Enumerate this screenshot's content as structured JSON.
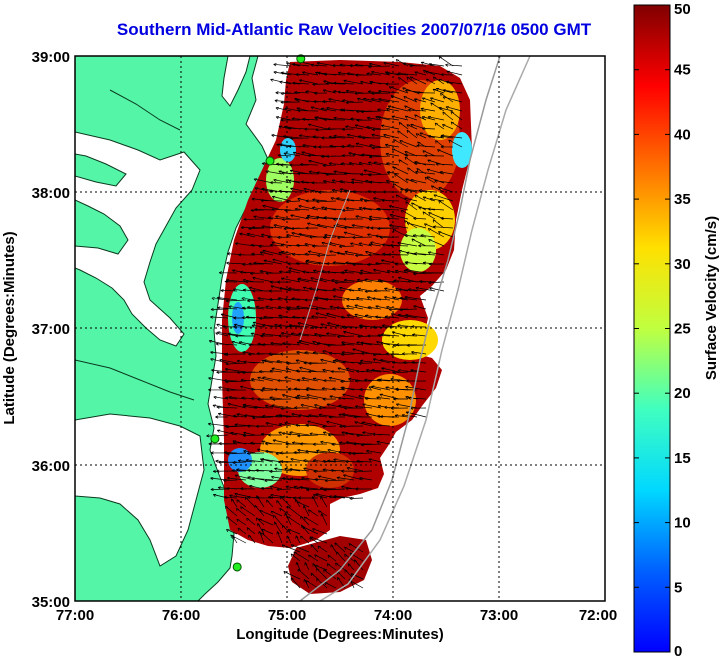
{
  "title": "Southern Mid-Atlantic Raw Velocities 2007/07/16 0500 GMT",
  "map": {
    "xlabel": "Longitude (Degrees:Minutes)",
    "ylabel": "Latitude (Degrees:Minutes)",
    "lon_ticks": [
      "77:00",
      "76:00",
      "75:00",
      "74:00",
      "73:00",
      "72:00"
    ],
    "lat_ticks": [
      "39:00",
      "38:00",
      "37:00",
      "36:00",
      "35:00"
    ],
    "lon_range": [
      -77,
      -72
    ],
    "lat_range": [
      35,
      39
    ],
    "grid": true,
    "land_color": "#55f5a8"
  },
  "colorbar": {
    "label": "Surface Velocity (cm/s)",
    "min": 0,
    "max": 50,
    "ticks": [
      "50",
      "45",
      "40",
      "35",
      "30",
      "25",
      "20",
      "15",
      "10",
      "5",
      "0"
    ]
  },
  "stations": [
    {
      "name": "",
      "lon": -74.87,
      "lat": 38.98
    },
    {
      "name": "",
      "lon": -75.16,
      "lat": 38.23
    },
    {
      "name": "",
      "lon": -75.68,
      "lat": 36.19
    },
    {
      "name": "",
      "lon": -75.47,
      "lat": 35.25
    }
  ]
}
